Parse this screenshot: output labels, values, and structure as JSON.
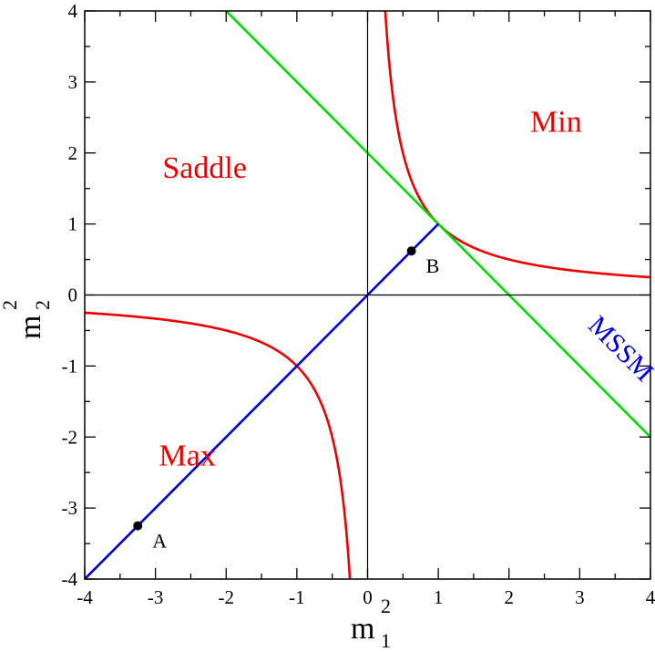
{
  "chart_data": {
    "type": "line",
    "xlabel": "m",
    "xlabel_sup": "2",
    "xlabel_sub": "1",
    "ylabel": "m",
    "ylabel_sup": "2",
    "ylabel_sub": "2",
    "xlim": [
      -4,
      4
    ],
    "ylim": [
      -4,
      4
    ],
    "xticks": [
      "-4",
      "-3",
      "-2",
      "-1",
      "0",
      "1",
      "2",
      "3",
      "4"
    ],
    "yticks": [
      "-4",
      "-3",
      "-2",
      "-1",
      "0",
      "1",
      "2",
      "3",
      "4"
    ],
    "grid": false,
    "series": [
      {
        "kind": "hyperbola",
        "equation": "m1^2 * m2^2 = 1",
        "color": "#ee0000",
        "branches": [
          {
            "x_range": [
              0.25,
              4
            ]
          },
          {
            "x_range": [
              -4,
              -0.25
            ]
          }
        ]
      },
      {
        "kind": "line",
        "equation": "m1^2 + m2^2 = 2",
        "color": "#00dd00",
        "x": [
          -2,
          4
        ],
        "y": [
          4,
          -2
        ]
      },
      {
        "kind": "line",
        "equation": "m1^2 = m2^2",
        "color": "#0000dd",
        "x": [
          -4,
          1
        ],
        "y": [
          -4,
          1
        ]
      }
    ],
    "axes_lines": {
      "x0": 0,
      "y0": 0,
      "color": "#000000"
    },
    "points": [
      {
        "label": "A",
        "x": -3.25,
        "y": -3.25
      },
      {
        "label": "B",
        "x": 0.62,
        "y": 0.62
      }
    ],
    "annotations": [
      {
        "text": "Min",
        "x": 2.3,
        "y": 2.3,
        "color": "#ee0000"
      },
      {
        "text": "Saddle",
        "x": -2.9,
        "y": 1.65,
        "color": "#ee0000"
      },
      {
        "text": "Max",
        "x": -2.95,
        "y": -2.4,
        "color": "#ee0000"
      },
      {
        "text": "MSSM",
        "x": 3.1,
        "y": -0.45,
        "color": "#0000dd",
        "rotation": -45
      }
    ]
  }
}
